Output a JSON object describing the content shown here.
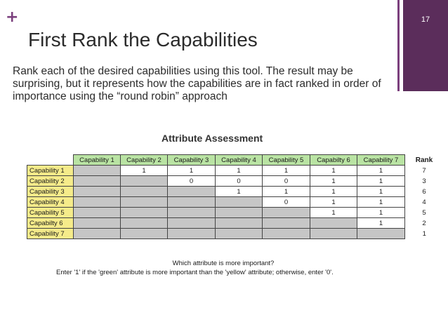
{
  "slide": {
    "plus": "+",
    "title": "First Rank the Capabilities",
    "page_number": "17",
    "body": "Rank each of the desired capabilities using this tool. The result may be surprising, but it represents how the capabilities are in fact ranked in order of importance using the “round robin” approach"
  },
  "assessment": {
    "title": "Attribute Assessment",
    "column_headers": [
      "Capability 1",
      "Capability 2",
      "Capability 3",
      "Capability 4",
      "Capability 5",
      "Capabilty 6",
      "Capability 7"
    ],
    "rank_header": "Rank",
    "rows": [
      {
        "label": "Capability 1",
        "cells": [
          "",
          "1",
          "1",
          "1",
          "1",
          "1",
          "1"
        ],
        "rank": "7"
      },
      {
        "label": "Capability 2",
        "cells": [
          "",
          "",
          "0",
          "0",
          "0",
          "1",
          "1"
        ],
        "rank": "3"
      },
      {
        "label": "Capability 3",
        "cells": [
          "",
          "",
          "",
          "1",
          "1",
          "1",
          "1"
        ],
        "rank": "6"
      },
      {
        "label": "Capability 4",
        "cells": [
          "",
          "",
          "",
          "",
          "0",
          "1",
          "1"
        ],
        "rank": "4"
      },
      {
        "label": "Capability 5",
        "cells": [
          "",
          "",
          "",
          "",
          "",
          "1",
          "1"
        ],
        "rank": "5"
      },
      {
        "label": "Capabilty 6",
        "cells": [
          "",
          "",
          "",
          "",
          "",
          "",
          "1"
        ],
        "rank": "2"
      },
      {
        "label": "Capability 7",
        "cells": [
          "",
          "",
          "",
          "",
          "",
          "",
          ""
        ],
        "rank": "1"
      }
    ],
    "question": "Which attribute is more important?",
    "instruction": "Enter '1' if the 'green' attribute is more important than the 'yellow' attribute; otherwise, enter '0'."
  },
  "colors": {
    "accent": "#7b3f7d",
    "side_band": "#5b2d5b",
    "header_green": "#b9e3a3",
    "row_yellow": "#f5eb8a",
    "blocked_grey": "#c6c6c6"
  }
}
